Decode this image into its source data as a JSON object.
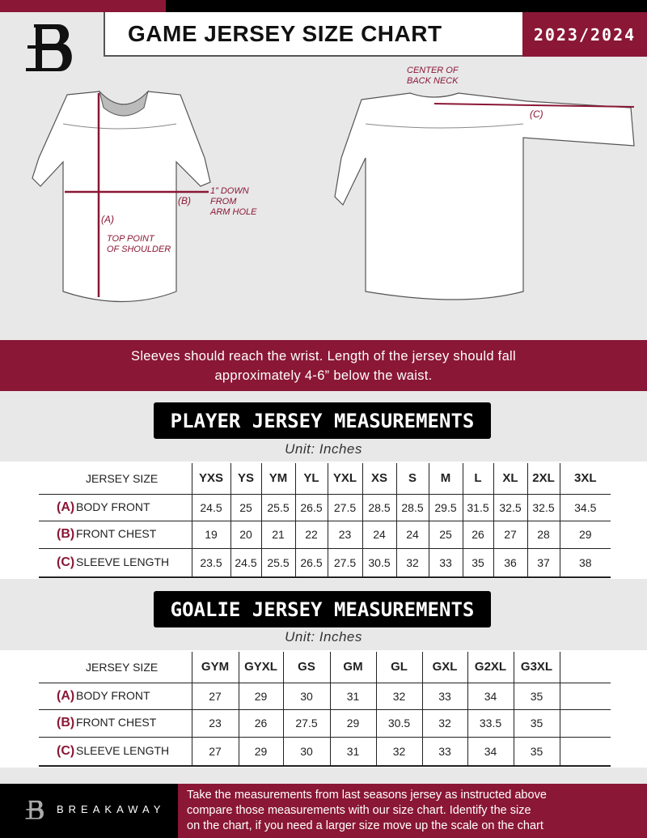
{
  "header": {
    "title": "GAME JERSEY SIZE CHART",
    "season": "2023/2024",
    "logo_letter": "B"
  },
  "diagram": {
    "front_labels": {
      "a": "(A)",
      "a_note": [
        "TOP POINT",
        "OF SHOULDER"
      ],
      "b": "(B)",
      "b_note": [
        "1” DOWN",
        "FROM",
        "ARM HOLE"
      ]
    },
    "back_labels": {
      "c": "(C)",
      "c_note": [
        "CENTER OF",
        "BACK NECK"
      ]
    }
  },
  "fit_note": [
    "Sleeves should reach the wrist. Length of the jersey should fall",
    "approximately 4-6” below the waist."
  ],
  "player": {
    "title": "PLAYER JERSEY MEASUREMENTS",
    "unit": "Unit: Inches",
    "header_label": "JERSEY SIZE",
    "sizes": [
      "YXS",
      "YS",
      "YM",
      "YL",
      "YXL",
      "XS",
      "S",
      "M",
      "L",
      "XL",
      "2XL",
      "3XL"
    ],
    "rows": [
      {
        "letter": "(A)",
        "label": "BODY FRONT",
        "values": [
          "24.5",
          "25",
          "25.5",
          "26.5",
          "27.5",
          "28.5",
          "28.5",
          "29.5",
          "31.5",
          "32.5",
          "32.5",
          "34.5"
        ]
      },
      {
        "letter": "(B)",
        "label": "FRONT CHEST",
        "values": [
          "19",
          "20",
          "21",
          "22",
          "23",
          "24",
          "24",
          "25",
          "26",
          "27",
          "28",
          "29"
        ]
      },
      {
        "letter": "(C)",
        "label": "SLEEVE LENGTH",
        "values": [
          "23.5",
          "24.5",
          "25.5",
          "26.5",
          "27.5",
          "30.5",
          "32",
          "33",
          "35",
          "36",
          "37",
          "38"
        ]
      }
    ]
  },
  "goalie": {
    "title": "GOALIE JERSEY MEASUREMENTS",
    "unit": "Unit: Inches",
    "header_label": "JERSEY SIZE",
    "sizes": [
      "GYM",
      "GYXL",
      "GS",
      "GM",
      "GL",
      "GXL",
      "G2XL",
      "G3XL",
      ""
    ],
    "rows": [
      {
        "letter": "(A)",
        "label": "BODY FRONT",
        "values": [
          "27",
          "29",
          "30",
          "31",
          "32",
          "33",
          "34",
          "35",
          ""
        ]
      },
      {
        "letter": "(B)",
        "label": "FRONT CHEST",
        "values": [
          "23",
          "26",
          "27.5",
          "29",
          "30.5",
          "32",
          "33.5",
          "35",
          ""
        ]
      },
      {
        "letter": "(C)",
        "label": "SLEEVE LENGTH",
        "values": [
          "27",
          "29",
          "30",
          "31",
          "32",
          "33",
          "34",
          "35",
          ""
        ]
      }
    ]
  },
  "footer": {
    "brand": "BREAKAWAY",
    "instructions": [
      "Take the measurements from last seasons jersey as instructed above",
      "compare those measurements  with our size chart. Identify the size",
      "on the chart, if you need a larger size move up the scale on the chart"
    ]
  },
  "colors": {
    "brand": "#8a1735",
    "black": "#000000",
    "background": "#e8e8e9"
  }
}
